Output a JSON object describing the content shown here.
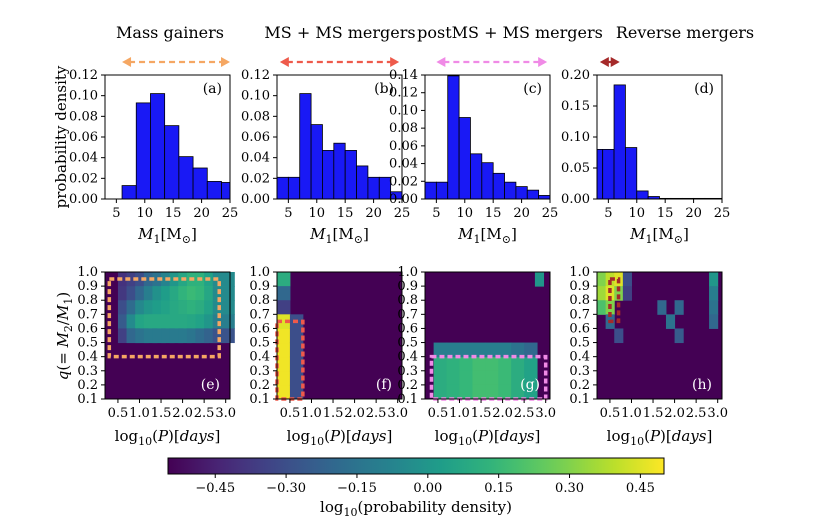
{
  "chart_data": {
    "type": "bar",
    "colors": {
      "bar": "#1919f5",
      "arrow": [
        "#f5a763",
        "#ee5a4b",
        "#f08ae6",
        "#a52a2a"
      ],
      "box": [
        "#f5a763",
        "#ee5a4b",
        "#f08ae6",
        "#a52a2a"
      ]
    },
    "column_titles": [
      "Mass gainers",
      "MS + MS mergers",
      "postMS + MS mergers",
      "Reverse mergers"
    ],
    "panel_labels": [
      "(a)",
      "(b)",
      "(c)",
      "(d)",
      "(e)",
      "(f)",
      "(g)",
      "(h)"
    ],
    "hist": {
      "ylabel": "probability density",
      "xlabel": {
        "main": "M",
        "sub": "1",
        "unit": "[M",
        "unit_sub": "⊙",
        "close": "]"
      },
      "xlim": [
        3,
        25
      ],
      "xticks": [
        "5",
        "10",
        "15",
        "20",
        "25"
      ],
      "panels": [
        {
          "ylim": [
            0,
            0.12
          ],
          "yticks": [
            "0.00",
            "0.02",
            "0.04",
            "0.06",
            "0.08",
            "0.10",
            "0.12"
          ],
          "bin_edges": [
            6,
            8.5,
            11,
            13.5,
            16,
            18.5,
            21,
            23.5,
            25
          ],
          "values": [
            0.013,
            0.093,
            0.102,
            0.071,
            0.041,
            0.03,
            0.017,
            0.016
          ]
        },
        {
          "ylim": [
            0,
            0.12
          ],
          "yticks": [
            "0.00",
            "0.02",
            "0.04",
            "0.06",
            "0.08",
            "0.10",
            "0.12"
          ],
          "bin_edges": [
            3,
            5,
            7,
            9,
            11,
            13,
            15,
            17,
            19,
            21,
            23,
            25
          ],
          "values": [
            0.021,
            0.021,
            0.102,
            0.072,
            0.047,
            0.054,
            0.047,
            0.032,
            0.021,
            0.021,
            0.007
          ]
        },
        {
          "ylim": [
            0,
            0.14
          ],
          "yticks": [
            "0.00",
            "0.02",
            "0.04",
            "0.06",
            "0.08",
            "0.10",
            "0.12",
            "0.14"
          ],
          "bin_edges": [
            3,
            5,
            7,
            9,
            11,
            13,
            15,
            17,
            19,
            21,
            23,
            25
          ],
          "values": [
            0.019,
            0.019,
            0.139,
            0.092,
            0.051,
            0.041,
            0.029,
            0.019,
            0.014,
            0.01,
            0.004
          ]
        },
        {
          "ylim": [
            0,
            0.2
          ],
          "yticks": [
            "0.00",
            "0.05",
            "0.10",
            "0.15",
            "0.20"
          ],
          "bin_edges": [
            3,
            4,
            6,
            8,
            10,
            12,
            14,
            16,
            18,
            20,
            22,
            25
          ],
          "values": [
            0.08,
            0.08,
            0.184,
            0.083,
            0.013,
            0.004,
            0.001,
            0.001,
            0.001,
            0.001,
            0.001
          ]
        }
      ],
      "arrow_ranges": [
        [
          6,
          25
        ],
        [
          3.5,
          24.5
        ],
        [
          5,
          24.5
        ],
        [
          3.5,
          7
        ]
      ]
    },
    "heat": {
      "ylabel": "q(= M2/M1)",
      "xlabel": "log10(P)[days]",
      "xlim": [
        0.2,
        3.1
      ],
      "ylim": [
        0.1,
        1.0
      ],
      "xticks": [
        "0.5",
        "1.0",
        "1.5",
        "2.0",
        "2.5",
        "3.0"
      ],
      "yticks": [
        "0.1",
        "0.2",
        "0.3",
        "0.4",
        "0.5",
        "0.6",
        "0.7",
        "0.8",
        "0.9",
        "1.0"
      ],
      "cmap": "viridis",
      "color_range": [
        -0.55,
        0.5
      ],
      "background": -0.55,
      "panels": [
        {
          "box": [
            0.3,
            2.85,
            0.4,
            0.95
          ],
          "cells": [
            [
              0.5,
              0.5,
              0.9,
              -0.4
            ],
            [
              0.7,
              0.5,
              0.9,
              -0.35
            ],
            [
              0.9,
              0.5,
              0.9,
              -0.3
            ],
            [
              1.1,
              0.5,
              0.9,
              -0.2
            ],
            [
              1.3,
              0.5,
              0.9,
              -0.15
            ],
            [
              1.5,
              0.5,
              0.9,
              -0.08
            ],
            [
              1.7,
              0.5,
              0.9,
              0.0
            ],
            [
              1.9,
              0.5,
              0.9,
              0.07
            ],
            [
              2.1,
              0.5,
              0.9,
              0.12
            ],
            [
              2.3,
              0.5,
              0.9,
              0.12
            ],
            [
              2.5,
              0.5,
              0.9,
              0.05
            ],
            [
              2.7,
              0.5,
              0.9,
              -0.05
            ],
            [
              0.5,
              0.5,
              0.8,
              -0.38
            ],
            [
              0.7,
              0.5,
              0.8,
              -0.3
            ],
            [
              0.9,
              0.5,
              0.8,
              -0.2
            ],
            [
              1.1,
              0.5,
              0.8,
              -0.1
            ],
            [
              1.3,
              0.5,
              0.8,
              -0.02
            ],
            [
              1.5,
              0.5,
              0.8,
              0.03
            ],
            [
              1.7,
              0.5,
              0.8,
              0.08
            ],
            [
              1.9,
              0.5,
              0.8,
              0.13
            ],
            [
              2.1,
              0.5,
              0.8,
              0.16
            ],
            [
              2.3,
              0.5,
              0.8,
              0.14
            ],
            [
              2.5,
              0.5,
              0.8,
              0.07
            ],
            [
              2.7,
              0.5,
              0.8,
              -0.05
            ],
            [
              0.5,
              0.5,
              0.7,
              -0.3
            ],
            [
              0.7,
              0.5,
              0.7,
              -0.18
            ],
            [
              0.9,
              0.5,
              0.7,
              -0.06
            ],
            [
              1.1,
              0.5,
              0.7,
              0.0
            ],
            [
              1.3,
              0.5,
              0.7,
              0.03
            ],
            [
              1.5,
              0.5,
              0.7,
              0.05
            ],
            [
              1.7,
              0.5,
              0.7,
              0.08
            ],
            [
              1.9,
              0.5,
              0.7,
              0.1
            ],
            [
              2.1,
              0.5,
              0.7,
              0.12
            ],
            [
              2.3,
              0.5,
              0.7,
              0.1
            ],
            [
              2.5,
              0.5,
              0.7,
              0.05
            ],
            [
              2.7,
              0.5,
              0.7,
              -0.05
            ],
            [
              0.5,
              0.5,
              0.6,
              -0.25
            ],
            [
              0.7,
              0.5,
              0.6,
              -0.05
            ],
            [
              0.9,
              0.5,
              0.6,
              0.06
            ],
            [
              1.1,
              0.5,
              0.6,
              0.08
            ],
            [
              1.3,
              0.5,
              0.6,
              0.08
            ],
            [
              1.5,
              0.5,
              0.6,
              0.08
            ],
            [
              1.7,
              0.5,
              0.6,
              0.08
            ],
            [
              1.9,
              0.5,
              0.6,
              0.08
            ],
            [
              2.1,
              0.5,
              0.6,
              0.07
            ],
            [
              2.3,
              0.5,
              0.6,
              0.05
            ],
            [
              2.5,
              0.5,
              0.6,
              0.0
            ],
            [
              2.7,
              0.5,
              0.6,
              -0.1
            ],
            [
              0.5,
              0.5,
              0.5,
              -0.35
            ],
            [
              0.7,
              0.5,
              0.5,
              -0.2
            ],
            [
              0.9,
              0.5,
              0.5,
              -0.15
            ],
            [
              1.1,
              0.5,
              0.5,
              -0.12
            ],
            [
              1.3,
              0.5,
              0.5,
              -0.12
            ],
            [
              1.5,
              0.5,
              0.5,
              -0.12
            ],
            [
              1.7,
              0.5,
              0.5,
              -0.12
            ],
            [
              1.9,
              0.5,
              0.5,
              -0.12
            ],
            [
              2.1,
              0.5,
              0.5,
              -0.14
            ],
            [
              2.3,
              0.5,
              0.5,
              -0.18
            ],
            [
              2.5,
              0.5,
              0.5,
              -0.22
            ],
            [
              2.7,
              0.5,
              0.5,
              -0.28
            ]
          ]
        },
        {
          "box": [
            0.2,
            0.8,
            0.1,
            0.65
          ],
          "cells": [
            [
              0.2,
              0.3,
              0.9,
              0.1
            ],
            [
              0.2,
              0.3,
              0.8,
              -0.2
            ],
            [
              0.2,
              0.3,
              0.7,
              -0.35
            ],
            [
              0.2,
              0.3,
              0.1,
              0.48
            ],
            [
              0.2,
              0.3,
              0.2,
              0.48
            ],
            [
              0.2,
              0.3,
              0.3,
              0.48
            ],
            [
              0.2,
              0.3,
              0.4,
              0.48
            ],
            [
              0.2,
              0.3,
              0.5,
              0.48
            ],
            [
              0.2,
              0.3,
              0.6,
              0.45
            ],
            [
              0.5,
              0.3,
              0.1,
              -0.3
            ],
            [
              0.5,
              0.3,
              0.2,
              -0.3
            ],
            [
              0.5,
              0.3,
              0.3,
              -0.3
            ],
            [
              0.5,
              0.3,
              0.4,
              -0.3
            ],
            [
              0.5,
              0.3,
              0.5,
              -0.3
            ],
            [
              0.5,
              0.3,
              0.6,
              -0.3
            ]
          ]
        },
        {
          "box": [
            0.35,
            3.0,
            0.1,
            0.4
          ],
          "cells": [
            [
              2.75,
              0.2,
              0.9,
              0.0
            ],
            [
              0.4,
              0.3,
              0.3,
              0.1
            ],
            [
              0.7,
              0.3,
              0.3,
              0.12
            ],
            [
              1.0,
              0.3,
              0.3,
              0.15
            ],
            [
              1.3,
              0.3,
              0.3,
              0.18
            ],
            [
              1.6,
              0.3,
              0.3,
              0.18
            ],
            [
              1.9,
              0.3,
              0.3,
              0.16
            ],
            [
              2.2,
              0.3,
              0.3,
              0.1
            ],
            [
              2.5,
              0.3,
              0.3,
              0.05
            ],
            [
              0.4,
              0.3,
              0.2,
              0.1
            ],
            [
              0.7,
              0.3,
              0.2,
              0.12
            ],
            [
              1.0,
              0.3,
              0.2,
              0.15
            ],
            [
              1.3,
              0.3,
              0.2,
              0.18
            ],
            [
              1.6,
              0.3,
              0.2,
              0.18
            ],
            [
              1.9,
              0.3,
              0.2,
              0.16
            ],
            [
              2.2,
              0.3,
              0.2,
              0.1
            ],
            [
              2.5,
              0.3,
              0.2,
              0.05
            ],
            [
              0.4,
              0.3,
              0.1,
              0.1
            ],
            [
              0.7,
              0.3,
              0.1,
              0.12
            ],
            [
              1.0,
              0.3,
              0.1,
              0.15
            ],
            [
              1.3,
              0.3,
              0.1,
              0.18
            ],
            [
              1.6,
              0.3,
              0.1,
              0.18
            ],
            [
              1.9,
              0.3,
              0.1,
              0.16
            ],
            [
              2.2,
              0.3,
              0.1,
              0.1
            ],
            [
              2.5,
              0.3,
              0.1,
              0.05
            ],
            [
              0.4,
              0.3,
              0.4,
              -0.1
            ],
            [
              0.7,
              0.3,
              0.4,
              -0.1
            ],
            [
              1.0,
              0.3,
              0.4,
              -0.1
            ],
            [
              1.3,
              0.3,
              0.4,
              -0.1
            ],
            [
              1.6,
              0.3,
              0.4,
              -0.1
            ],
            [
              1.9,
              0.3,
              0.4,
              -0.1
            ],
            [
              2.2,
              0.3,
              0.4,
              -0.15
            ],
            [
              2.5,
              0.3,
              0.4,
              -0.2
            ]
          ]
        },
        {
          "box": [
            0.5,
            0.7,
            0.65,
            0.95
          ],
          "cells": [
            [
              0.2,
              0.2,
              0.9,
              0.3
            ],
            [
              0.2,
              0.2,
              0.8,
              0.35
            ],
            [
              0.2,
              0.2,
              0.7,
              0.2
            ],
            [
              0.4,
              0.2,
              0.9,
              0.4
            ],
            [
              0.4,
              0.2,
              0.8,
              0.45
            ],
            [
              0.4,
              0.2,
              0.7,
              0.3
            ],
            [
              0.6,
              0.2,
              0.9,
              0.45
            ],
            [
              0.6,
              0.2,
              0.8,
              0.3
            ],
            [
              0.4,
              0.2,
              0.6,
              -0.2
            ],
            [
              0.6,
              0.2,
              0.5,
              -0.3
            ],
            [
              0.8,
              0.2,
              0.9,
              -0.3
            ],
            [
              0.8,
              0.2,
              0.8,
              -0.35
            ],
            [
              1.6,
              0.2,
              0.7,
              -0.2
            ],
            [
              1.8,
              0.2,
              0.6,
              -0.15
            ],
            [
              2.0,
              0.2,
              0.7,
              -0.2
            ],
            [
              2.0,
              0.2,
              0.5,
              -0.25
            ],
            [
              2.8,
              0.2,
              0.9,
              0.0
            ],
            [
              2.8,
              0.2,
              0.8,
              -0.1
            ],
            [
              2.8,
              0.2,
              0.7,
              -0.15
            ],
            [
              2.8,
              0.2,
              0.6,
              -0.2
            ]
          ]
        }
      ]
    },
    "colorbar": {
      "label": "log10(probability density)",
      "ticks": [
        -0.45,
        -0.3,
        -0.15,
        0.0,
        0.15,
        0.3,
        0.45
      ],
      "tick_labels": [
        "−0.45",
        "−0.30",
        "−0.15",
        "0.00",
        "0.15",
        "0.30",
        "0.45"
      ]
    }
  }
}
